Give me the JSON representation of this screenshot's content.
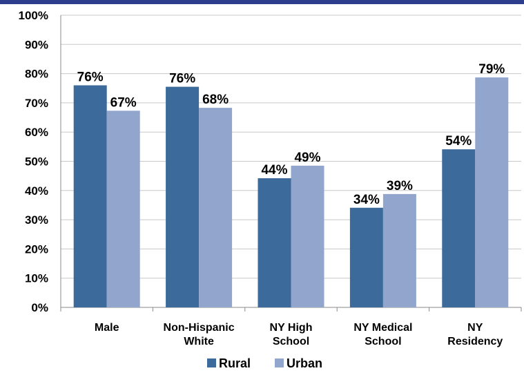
{
  "chart_data": {
    "type": "bar",
    "categories": [
      [
        "Male"
      ],
      [
        "Non-Hispanic",
        "White"
      ],
      [
        "NY High",
        "School"
      ],
      [
        "NY Medical",
        "School"
      ],
      [
        "NY",
        "Residency"
      ]
    ],
    "series": [
      {
        "name": "Rural",
        "color": "#3b6a9b",
        "values": [
          76,
          75.5,
          44.2,
          34.1,
          54.1
        ],
        "labels": [
          "76%",
          "76%",
          "44%",
          "34%",
          "54%"
        ]
      },
      {
        "name": "Urban",
        "color": "#92a6cd",
        "values": [
          67.3,
          68.3,
          48.5,
          38.8,
          78.7
        ],
        "labels": [
          "67%",
          "68%",
          "49%",
          "39%",
          "79%"
        ]
      }
    ],
    "y_ticks": [
      "0%",
      "10%",
      "20%",
      "30%",
      "40%",
      "50%",
      "60%",
      "70%",
      "80%",
      "90%",
      "100%"
    ],
    "ylim": [
      0,
      100
    ],
    "grid": true,
    "legend_position": "bottom"
  }
}
